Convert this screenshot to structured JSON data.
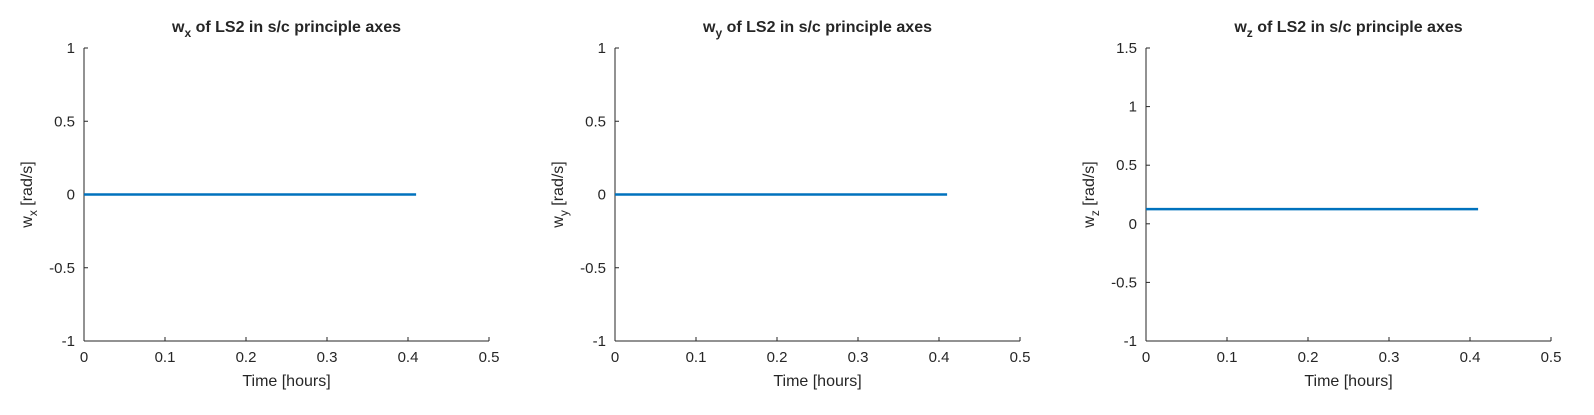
{
  "chart_data": [
    {
      "type": "line",
      "title": {
        "main": "w",
        "sub": "x",
        "rest": " of LS2 in s/c principle axes"
      },
      "xlabel": "Time [hours]",
      "ylabel": {
        "main": "w",
        "sub": "x",
        "rest": " [rad/s]"
      },
      "xlim": [
        0,
        0.5
      ],
      "ylim": [
        -1,
        1
      ],
      "xticks": [
        "0",
        "0.1",
        "0.2",
        "0.3",
        "0.4",
        "0.5"
      ],
      "yticks": [
        "-1",
        "-0.5",
        "0",
        "0.5",
        "1"
      ],
      "grid": false,
      "series": [
        {
          "x": [
            0,
            0.41
          ],
          "y": [
            0,
            0
          ]
        }
      ]
    },
    {
      "type": "line",
      "title": {
        "main": "w",
        "sub": "y",
        "rest": " of LS2 in s/c principle axes"
      },
      "xlabel": "Time [hours]",
      "ylabel": {
        "main": "w",
        "sub": "y",
        "rest": " [rad/s]"
      },
      "xlim": [
        0,
        0.5
      ],
      "ylim": [
        -1,
        1
      ],
      "xticks": [
        "0",
        "0.1",
        "0.2",
        "0.3",
        "0.4",
        "0.5"
      ],
      "yticks": [
        "-1",
        "-0.5",
        "0",
        "0.5",
        "1"
      ],
      "grid": false,
      "series": [
        {
          "x": [
            0,
            0.41
          ],
          "y": [
            0,
            0
          ]
        }
      ]
    },
    {
      "type": "line",
      "title": {
        "main": "w",
        "sub": "z",
        "rest": " of LS2 in s/c principle axes"
      },
      "xlabel": "Time [hours]",
      "ylabel": {
        "main": "w",
        "sub": "z",
        "rest": " [rad/s]"
      },
      "xlim": [
        0,
        0.5
      ],
      "ylim": [
        -1,
        1.5
      ],
      "xticks": [
        "0",
        "0.1",
        "0.2",
        "0.3",
        "0.4",
        "0.5"
      ],
      "yticks": [
        "-1",
        "-0.5",
        "0",
        "0.5",
        "1",
        "1.5"
      ],
      "grid": false,
      "series": [
        {
          "x": [
            0,
            0.41
          ],
          "y": [
            0.125,
            0.125
          ]
        }
      ]
    }
  ],
  "colors": {
    "line": "#0072BD",
    "axis": "#262626"
  }
}
